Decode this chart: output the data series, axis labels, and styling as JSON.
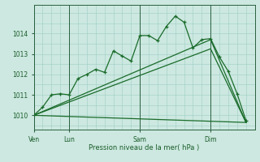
{
  "background_color": "#cce8e0",
  "grid_color": "#9ecec4",
  "line_color": "#1a6b2a",
  "xlabel": "Pression niveau de la mer( hPa )",
  "xlim": [
    0,
    75
  ],
  "ylim": [
    1009.3,
    1015.4
  ],
  "yticks": [
    1010,
    1011,
    1012,
    1013,
    1014
  ],
  "xtick_positions": [
    0,
    12,
    36,
    60
  ],
  "xtick_labels": [
    "Ven",
    "Lun",
    "Sam",
    "Dim"
  ],
  "vlines": [
    0,
    12,
    36,
    60
  ],
  "series1": [
    [
      0,
      1010.0
    ],
    [
      3,
      1010.4
    ],
    [
      6,
      1011.0
    ],
    [
      9,
      1011.05
    ],
    [
      12,
      1011.0
    ],
    [
      15,
      1011.8
    ],
    [
      18,
      1012.0
    ],
    [
      21,
      1012.25
    ],
    [
      24,
      1012.1
    ],
    [
      27,
      1013.15
    ],
    [
      30,
      1012.9
    ],
    [
      33,
      1012.65
    ],
    [
      36,
      1013.9
    ],
    [
      39,
      1013.9
    ],
    [
      42,
      1013.65
    ],
    [
      45,
      1014.35
    ],
    [
      48,
      1014.85
    ],
    [
      51,
      1014.55
    ],
    [
      54,
      1013.3
    ],
    [
      57,
      1013.7
    ],
    [
      60,
      1013.75
    ],
    [
      63,
      1012.85
    ],
    [
      66,
      1012.15
    ],
    [
      69,
      1011.05
    ],
    [
      72,
      1009.75
    ]
  ],
  "series2": [
    [
      0,
      1010.0
    ],
    [
      60,
      1013.25
    ],
    [
      72,
      1009.65
    ]
  ],
  "series3": [
    [
      0,
      1010.0
    ],
    [
      60,
      1013.7
    ],
    [
      72,
      1009.65
    ]
  ],
  "series4": [
    [
      0,
      1010.0
    ],
    [
      72,
      1009.65
    ]
  ]
}
